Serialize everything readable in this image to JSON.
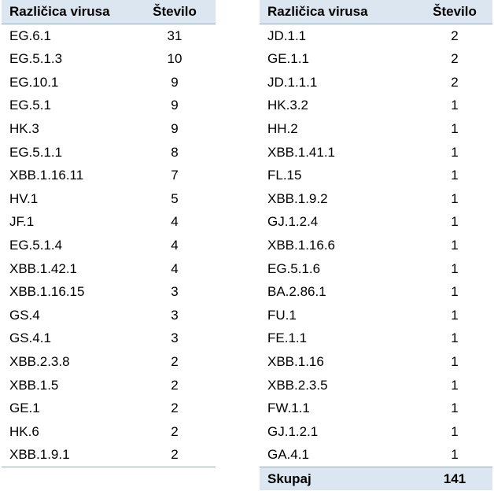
{
  "headers": {
    "variant": "Različica virusa",
    "count": "Število"
  },
  "left_rows": [
    {
      "variant": "EG.6.1",
      "count": "31"
    },
    {
      "variant": "EG.5.1.3",
      "count": "10"
    },
    {
      "variant": "EG.10.1",
      "count": "9"
    },
    {
      "variant": "EG.5.1",
      "count": "9"
    },
    {
      "variant": "HK.3",
      "count": "9"
    },
    {
      "variant": "EG.5.1.1",
      "count": "8"
    },
    {
      "variant": "XBB.1.16.11",
      "count": "7"
    },
    {
      "variant": "HV.1",
      "count": "5"
    },
    {
      "variant": "JF.1",
      "count": "4"
    },
    {
      "variant": "EG.5.1.4",
      "count": "4"
    },
    {
      "variant": "XBB.1.42.1",
      "count": "4"
    },
    {
      "variant": "XBB.1.16.15",
      "count": "3"
    },
    {
      "variant": "GS.4",
      "count": "3"
    },
    {
      "variant": "GS.4.1",
      "count": "3"
    },
    {
      "variant": "XBB.2.3.8",
      "count": "2"
    },
    {
      "variant": "XBB.1.5",
      "count": "2"
    },
    {
      "variant": "GE.1",
      "count": "2"
    },
    {
      "variant": "HK.6",
      "count": "2"
    },
    {
      "variant": "XBB.1.9.1",
      "count": "2"
    }
  ],
  "right_rows": [
    {
      "variant": "JD.1.1",
      "count": "2"
    },
    {
      "variant": "GE.1.1",
      "count": "2"
    },
    {
      "variant": "JD.1.1.1",
      "count": "2"
    },
    {
      "variant": "HK.3.2",
      "count": "1"
    },
    {
      "variant": "HH.2",
      "count": "1"
    },
    {
      "variant": "XBB.1.41.1",
      "count": "1"
    },
    {
      "variant": "FL.15",
      "count": "1"
    },
    {
      "variant": "XBB.1.9.2",
      "count": "1"
    },
    {
      "variant": "GJ.1.2.4",
      "count": "1"
    },
    {
      "variant": "XBB.1.16.6",
      "count": "1"
    },
    {
      "variant": "EG.5.1.6",
      "count": "1"
    },
    {
      "variant": "BA.2.86.1",
      "count": "1"
    },
    {
      "variant": "FU.1",
      "count": "1"
    },
    {
      "variant": "FE.1.1",
      "count": "1"
    },
    {
      "variant": "XBB.1.16",
      "count": "1"
    },
    {
      "variant": "XBB.2.3.5",
      "count": "1"
    },
    {
      "variant": "FW.1.1",
      "count": "1"
    },
    {
      "variant": "GJ.1.2.1",
      "count": "1"
    },
    {
      "variant": "GA.4.1",
      "count": "1"
    }
  ],
  "total": {
    "label": "Skupaj",
    "value": "141"
  }
}
